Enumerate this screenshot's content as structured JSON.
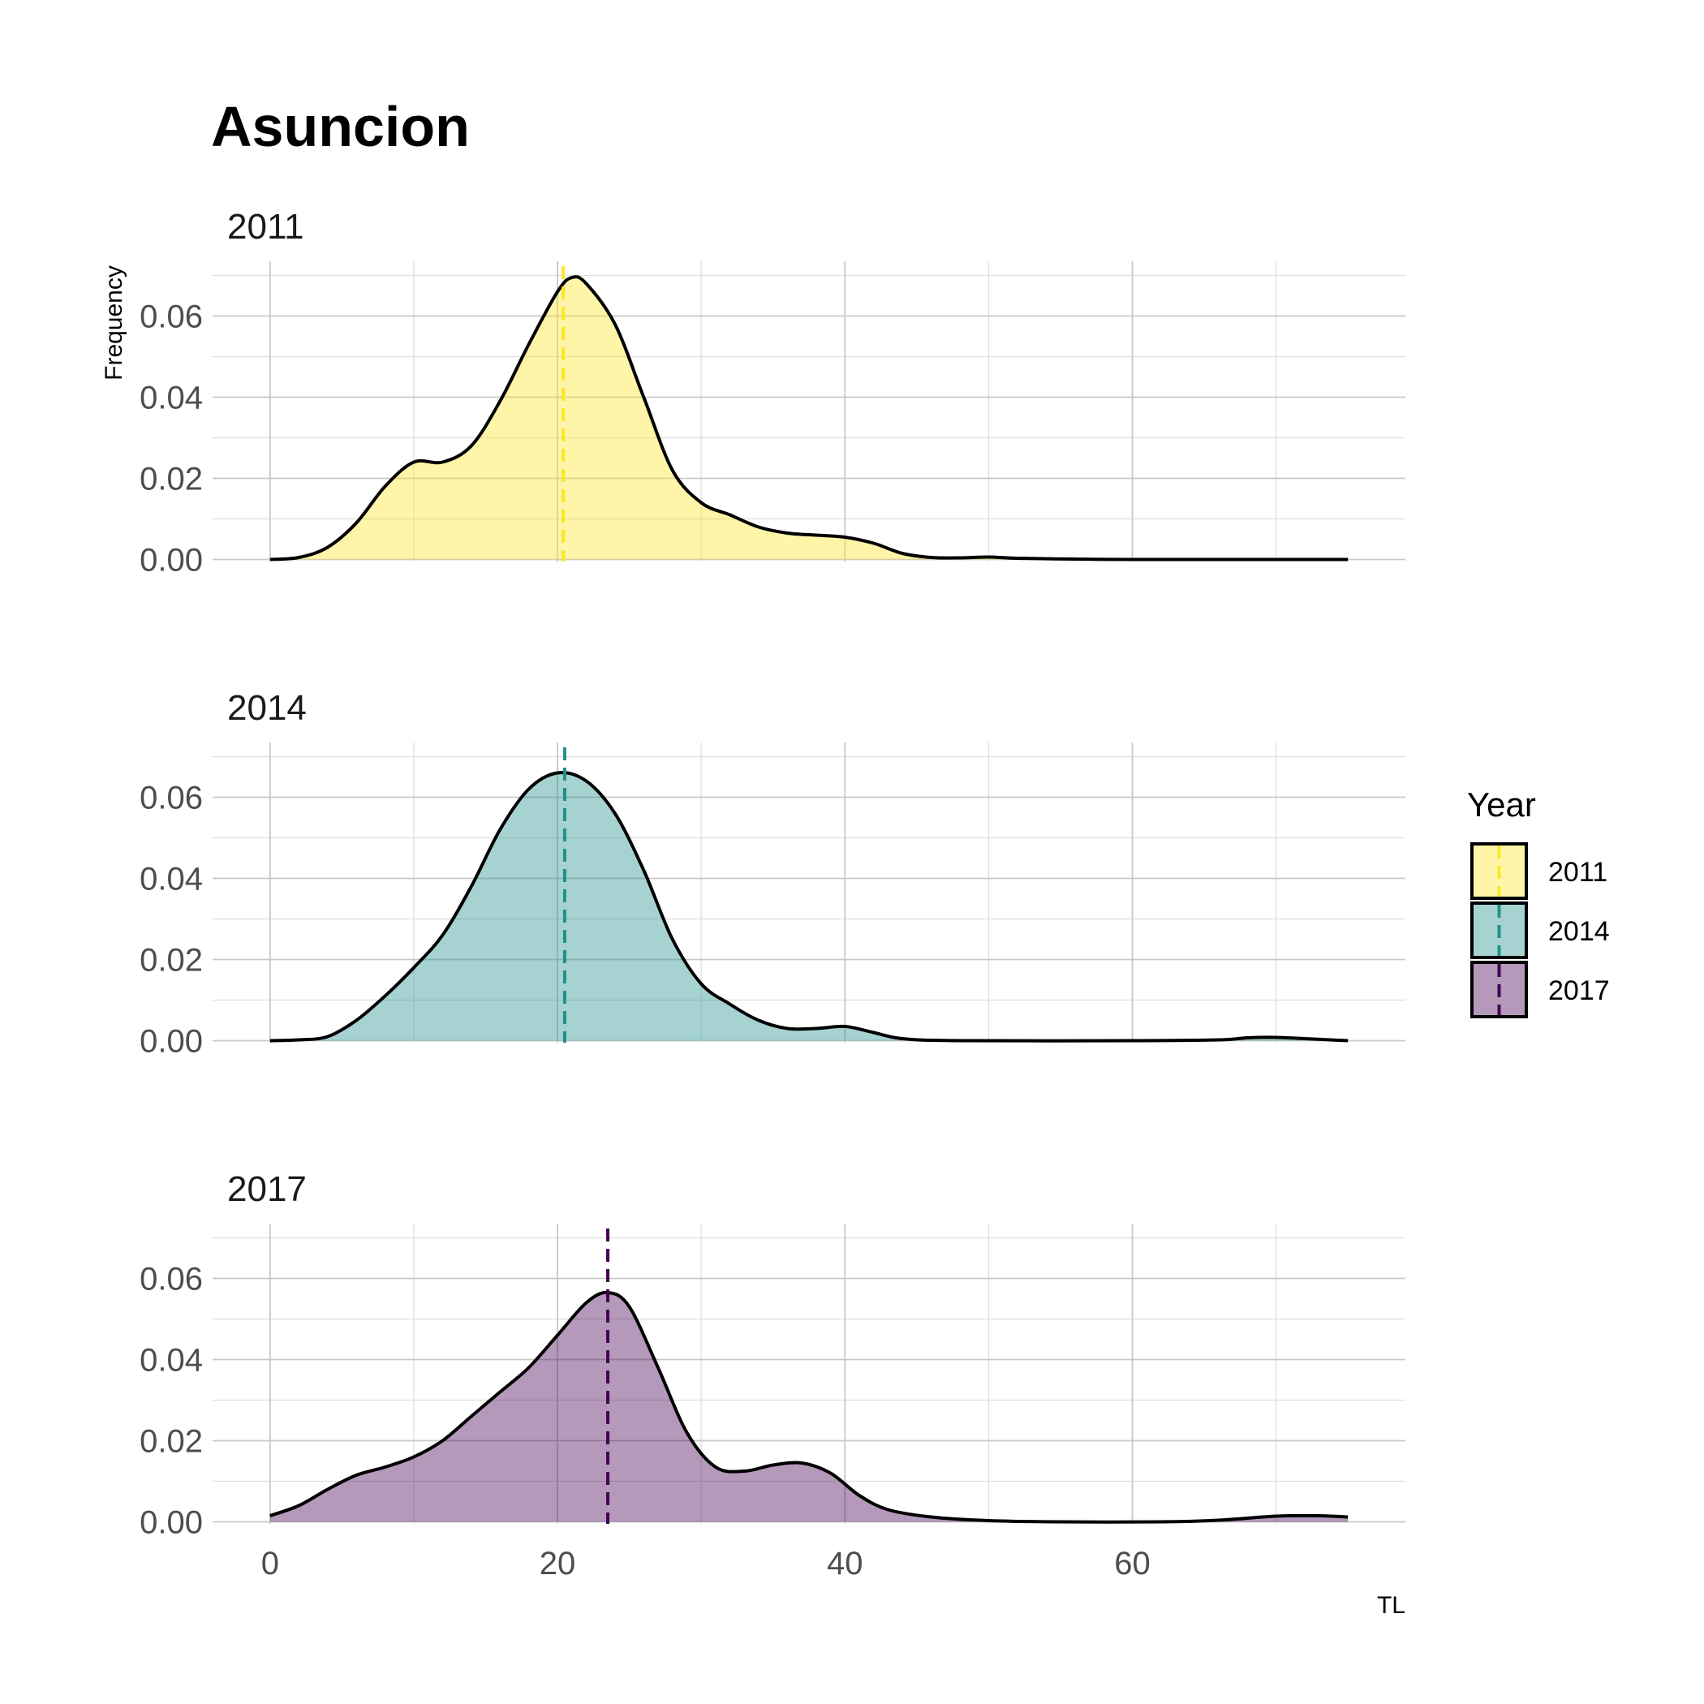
{
  "chart_data": {
    "type": "area",
    "chart_kind": "density",
    "title": "Asuncion",
    "xlabel": "TL",
    "ylabel": "Frequency",
    "xlim": [
      -4,
      79
    ],
    "ylim": [
      -0.0005,
      0.0735
    ],
    "x_ticks": [
      0,
      20,
      40,
      60
    ],
    "y_ticks": [
      0.0,
      0.02,
      0.04,
      0.06
    ],
    "y_tick_labels": [
      "0.00",
      "0.02",
      "0.04",
      "0.06"
    ],
    "grid": true,
    "legend": {
      "title": "Year",
      "position": "right",
      "entries": [
        "2011",
        "2014",
        "2017"
      ]
    },
    "series": [
      {
        "name": "2011",
        "fill": "#fde725",
        "line": "#fde725",
        "mean_line": 20.4,
        "points": [
          [
            0,
            0
          ],
          [
            2,
            0.0005
          ],
          [
            4,
            0.003
          ],
          [
            6,
            0.009
          ],
          [
            8,
            0.018
          ],
          [
            10,
            0.024
          ],
          [
            12,
            0.024
          ],
          [
            14,
            0.028
          ],
          [
            16,
            0.039
          ],
          [
            18,
            0.053
          ],
          [
            20,
            0.066
          ],
          [
            21,
            0.0695
          ],
          [
            22,
            0.068
          ],
          [
            24,
            0.058
          ],
          [
            26,
            0.04
          ],
          [
            28,
            0.022
          ],
          [
            30,
            0.014
          ],
          [
            32,
            0.011
          ],
          [
            34,
            0.008
          ],
          [
            36,
            0.0065
          ],
          [
            38,
            0.006
          ],
          [
            40,
            0.0055
          ],
          [
            42,
            0.004
          ],
          [
            44,
            0.0015
          ],
          [
            46,
            0.0005
          ],
          [
            48,
            0.0004
          ],
          [
            50,
            0.0006
          ],
          [
            52,
            0.0003
          ],
          [
            56,
            0.0001
          ],
          [
            60,
            0
          ],
          [
            75,
            0
          ]
        ]
      },
      {
        "name": "2014",
        "fill": "#21908c",
        "line": "#21908c",
        "mean_line": 20.5,
        "points": [
          [
            0,
            0
          ],
          [
            2,
            0.0002
          ],
          [
            4,
            0.001
          ],
          [
            6,
            0.005
          ],
          [
            8,
            0.011
          ],
          [
            10,
            0.018
          ],
          [
            12,
            0.026
          ],
          [
            14,
            0.038
          ],
          [
            16,
            0.052
          ],
          [
            18,
            0.062
          ],
          [
            20,
            0.066
          ],
          [
            22,
            0.064
          ],
          [
            24,
            0.056
          ],
          [
            26,
            0.042
          ],
          [
            28,
            0.025
          ],
          [
            30,
            0.014
          ],
          [
            32,
            0.009
          ],
          [
            34,
            0.005
          ],
          [
            36,
            0.003
          ],
          [
            38,
            0.003
          ],
          [
            40,
            0.0035
          ],
          [
            42,
            0.002
          ],
          [
            44,
            0.0005
          ],
          [
            48,
            0
          ],
          [
            60,
            0
          ],
          [
            66,
            0.0002
          ],
          [
            68,
            0.0007
          ],
          [
            70,
            0.0008
          ],
          [
            72,
            0.0005
          ],
          [
            75,
            0
          ]
        ]
      },
      {
        "name": "2017",
        "fill": "#440154",
        "line": "#440154",
        "mean_line": 23.5,
        "points": [
          [
            0,
            0.0015
          ],
          [
            2,
            0.004
          ],
          [
            4,
            0.008
          ],
          [
            6,
            0.0115
          ],
          [
            8,
            0.0135
          ],
          [
            10,
            0.016
          ],
          [
            12,
            0.02
          ],
          [
            14,
            0.026
          ],
          [
            16,
            0.032
          ],
          [
            18,
            0.038
          ],
          [
            20,
            0.046
          ],
          [
            22,
            0.054
          ],
          [
            23.5,
            0.0565
          ],
          [
            25,
            0.053
          ],
          [
            27,
            0.038
          ],
          [
            29,
            0.022
          ],
          [
            31,
            0.0135
          ],
          [
            33,
            0.0125
          ],
          [
            35,
            0.014
          ],
          [
            37,
            0.0145
          ],
          [
            39,
            0.012
          ],
          [
            41,
            0.0065
          ],
          [
            43,
            0.003
          ],
          [
            46,
            0.0012
          ],
          [
            50,
            0.0003
          ],
          [
            55,
            0
          ],
          [
            62,
            0
          ],
          [
            66,
            0.0004
          ],
          [
            70,
            0.0014
          ],
          [
            73,
            0.0015
          ],
          [
            75,
            0.0012
          ]
        ]
      }
    ]
  }
}
